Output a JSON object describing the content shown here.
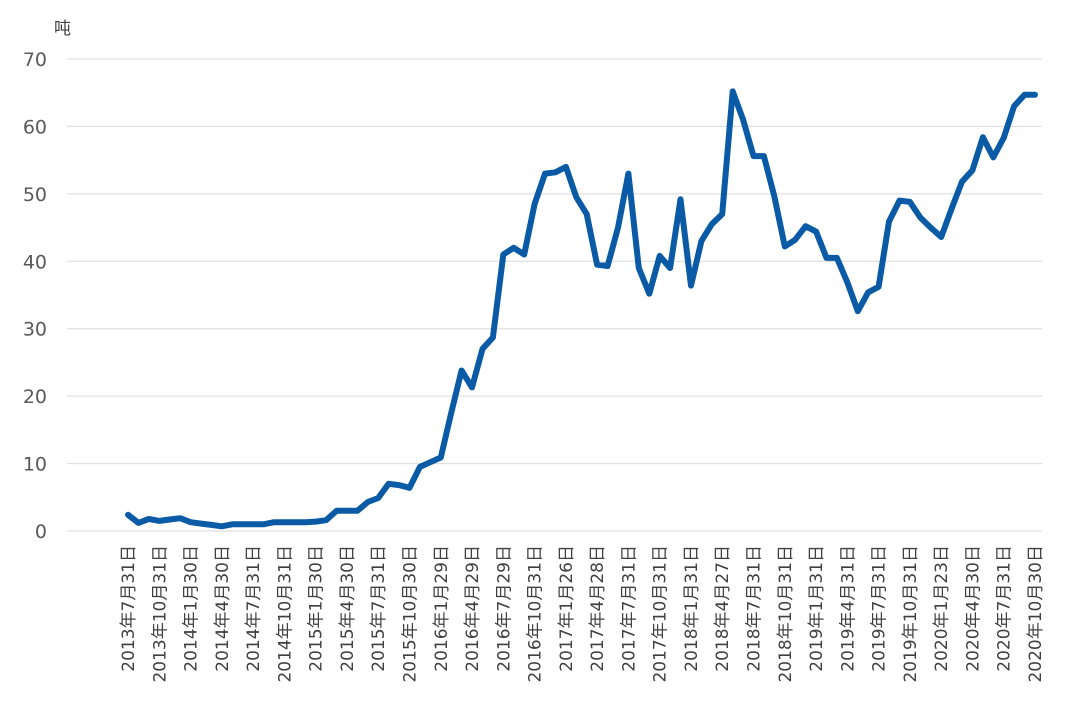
{
  "chart_data": {
    "type": "line",
    "title": "",
    "xlabel": "",
    "ylabel": "吨",
    "ylim": [
      0,
      70
    ],
    "yticks": [
      0,
      10,
      20,
      30,
      40,
      50,
      60,
      70
    ],
    "grid": true,
    "line_color": "#0a5aa6",
    "x_tick_labels": [
      "2013年7月31日",
      "2013年10月31日",
      "2014年1月30日",
      "2014年4月30日",
      "2014年7月31日",
      "2014年10月31日",
      "2015年1月30日",
      "2015年4月30日",
      "2015年7月31日",
      "2015年10月30日",
      "2016年1月29日",
      "2016年4月29日",
      "2016年7月29日",
      "2016年10月31日",
      "2017年1月26日",
      "2017年4月28日",
      "2017年7月31日",
      "2017年10月31日",
      "2018年1月31日",
      "2018年4月27日",
      "2018年7月31日",
      "2018年10月31日",
      "2019年1月31日",
      "2019年4月31日",
      "2019年7月31日",
      "2019年10月31日",
      "2020年1月23日",
      "2020年4月30日",
      "2020年7月31日",
      "2020年10月30日"
    ],
    "series": [
      {
        "values": [
          2.4,
          1.2,
          1.8,
          1.5,
          1.7,
          1.9,
          1.3,
          1.1,
          0.9,
          0.7,
          1.0,
          1.0,
          1.0,
          1.0,
          1.3,
          1.3,
          1.3,
          1.3,
          1.4,
          1.6,
          3.0,
          3.0,
          3.0,
          4.3,
          4.9,
          7.0,
          6.8,
          6.4,
          9.5,
          10.2,
          10.9,
          17.5,
          23.8,
          21.3,
          27.0,
          28.7,
          41.0,
          42.0,
          41.0,
          48.5,
          53.0,
          53.2,
          54.0,
          49.5,
          47.0,
          39.5,
          39.3,
          45.0,
          53.0,
          39.0,
          35.2,
          40.8,
          39.0,
          49.2,
          36.4,
          43.0,
          45.5,
          47.0,
          65.2,
          61.0,
          55.6,
          55.6,
          49.6,
          42.2,
          43.2,
          45.2,
          44.4,
          40.5,
          40.5,
          36.9,
          32.6,
          35.4,
          36.2,
          45.9,
          49.0,
          48.8,
          46.5,
          45.0,
          43.6,
          47.8,
          51.8,
          53.5,
          58.4,
          55.4,
          58.3,
          63.0,
          64.7,
          64.7
        ]
      }
    ]
  }
}
